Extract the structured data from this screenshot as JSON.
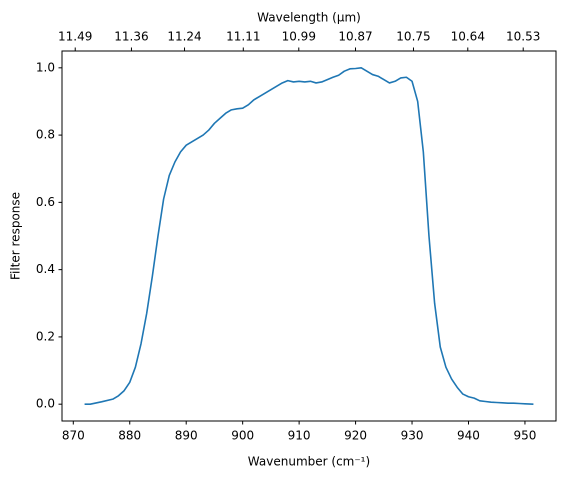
{
  "chart_data": {
    "type": "line",
    "xlabel": "Wavenumber (cm⁻¹)",
    "ylabel": "Filter response",
    "x2label": "Wavelength (μm)",
    "x2scale": "reciprocal",
    "x": [
      872,
      873,
      875,
      877,
      878,
      879,
      880,
      881,
      882,
      883,
      884,
      885,
      886,
      887,
      888,
      889,
      890,
      891,
      892,
      893,
      894,
      895,
      896,
      897,
      898,
      899,
      900,
      901,
      902,
      903,
      904,
      905,
      906,
      907,
      908,
      909,
      910,
      911,
      912,
      913,
      914,
      915,
      916,
      917,
      918,
      919,
      920,
      921,
      922,
      923,
      924,
      925,
      926,
      927,
      928,
      929,
      930,
      931,
      932,
      933,
      934,
      935,
      936,
      937,
      938,
      939,
      940,
      941,
      942,
      943,
      944,
      945,
      946,
      947,
      948,
      949,
      950,
      951.5
    ],
    "series": [
      {
        "color": "#1f77b4",
        "values": [
          0.0,
          0.0,
          0.007,
          0.015,
          0.025,
          0.04,
          0.065,
          0.11,
          0.18,
          0.27,
          0.38,
          0.5,
          0.61,
          0.68,
          0.72,
          0.75,
          0.77,
          0.78,
          0.79,
          0.8,
          0.815,
          0.835,
          0.85,
          0.865,
          0.875,
          0.878,
          0.88,
          0.89,
          0.905,
          0.915,
          0.925,
          0.935,
          0.945,
          0.955,
          0.962,
          0.958,
          0.96,
          0.958,
          0.96,
          0.955,
          0.958,
          0.965,
          0.972,
          0.978,
          0.99,
          0.997,
          0.998,
          1.0,
          0.99,
          0.98,
          0.975,
          0.965,
          0.955,
          0.96,
          0.97,
          0.972,
          0.96,
          0.9,
          0.75,
          0.5,
          0.3,
          0.17,
          0.11,
          0.075,
          0.05,
          0.03,
          0.022,
          0.018,
          0.01,
          0.008,
          0.006,
          0.005,
          0.004,
          0.003,
          0.003,
          0.002,
          0.001,
          0.0
        ]
      }
    ],
    "xlim": [
      868.0,
      955.5
    ],
    "xticks": [
      870,
      880,
      890,
      900,
      910,
      920,
      930,
      940,
      950
    ],
    "ylim": [
      -0.05,
      1.05
    ],
    "yticks": [
      {
        "value": 0,
        "label": "0.0"
      },
      0.2,
      0.4,
      0.6,
      0.8,
      {
        "value": 1,
        "label": "1.0"
      }
    ],
    "x2lim": [
      11.521,
      10.466
    ],
    "x2ticks": [
      11.49,
      11.36,
      11.24,
      11.11,
      10.99,
      10.87,
      10.75,
      10.64,
      10.53
    ]
  }
}
